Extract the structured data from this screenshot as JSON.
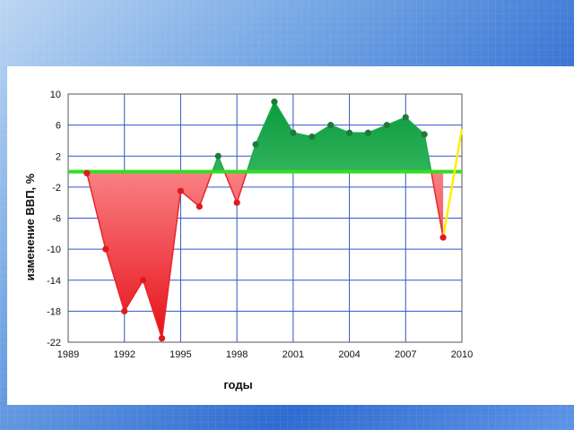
{
  "chart_data": {
    "type": "area",
    "title": "",
    "xlabel": "годы",
    "ylabel": "изменение ВВП, %",
    "xlim": [
      1989,
      2010
    ],
    "ylim": [
      -22,
      10
    ],
    "xticks": [
      1989,
      1992,
      1995,
      1998,
      2001,
      2004,
      2007,
      2010
    ],
    "yticks": [
      10,
      6,
      2,
      -2,
      -6,
      -10,
      -14,
      -18,
      -22
    ],
    "baseline": 0,
    "grid": true,
    "colors": {
      "positive": "#1aa84a",
      "negative": "#e8262a",
      "baseline_line": "#33dd22",
      "forecast_line": "#ffee00",
      "grid": "#3355cc"
    },
    "series": [
      {
        "x": [
          1990,
          1991,
          1992,
          1993,
          1994,
          1995,
          1996,
          1997,
          1998,
          1999,
          2000,
          2001,
          2002,
          2003,
          2004,
          2005,
          2006,
          2007,
          2008,
          2009
        ],
        "y": [
          -0.2,
          -10,
          -18,
          -14,
          -21.5,
          -2.5,
          -4.5,
          2,
          -4,
          3.5,
          9,
          5,
          4.5,
          6,
          5,
          5,
          6,
          7,
          4.8,
          -8.5
        ]
      }
    ],
    "forecast": {
      "x": [
        2009,
        2010
      ],
      "y": [
        -8.5,
        5.5
      ]
    }
  }
}
